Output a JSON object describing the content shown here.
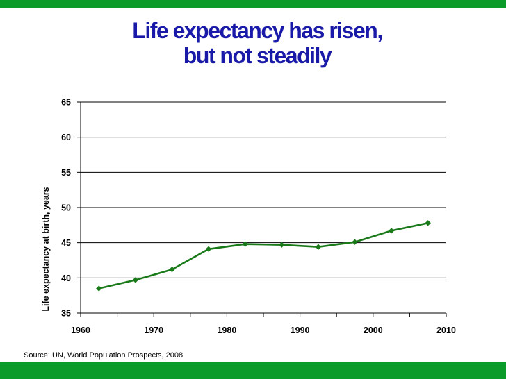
{
  "slide": {
    "title_line1": "Life expectancy has risen,",
    "title_line2": "but not steadily",
    "source": "Source: UN, World Population Prospects, 2008",
    "accent_color": "#0b9b2a",
    "title_color": "#1a1aa8"
  },
  "chart_data": {
    "type": "line",
    "title": "Life expectancy has risen, but not steadily",
    "xlabel": "",
    "ylabel": "Life expectancy at birth, years",
    "xlim": [
      1960,
      2010
    ],
    "ylim": [
      35,
      65
    ],
    "xticks": [
      1960,
      1970,
      1980,
      1990,
      2000,
      2010
    ],
    "yticks": [
      35,
      40,
      45,
      50,
      55,
      60,
      65
    ],
    "grid": "horizontal",
    "legend": "none",
    "series": [
      {
        "color": "#1a7a1a",
        "marker": "diamond",
        "x": [
          1962.5,
          1967.5,
          1972.5,
          1977.5,
          1982.5,
          1987.5,
          1992.5,
          1997.5,
          2002.5,
          2007.5
        ],
        "y": [
          38.5,
          39.7,
          41.2,
          44.1,
          44.8,
          44.7,
          44.4,
          45.1,
          46.7,
          47.8
        ]
      }
    ]
  }
}
